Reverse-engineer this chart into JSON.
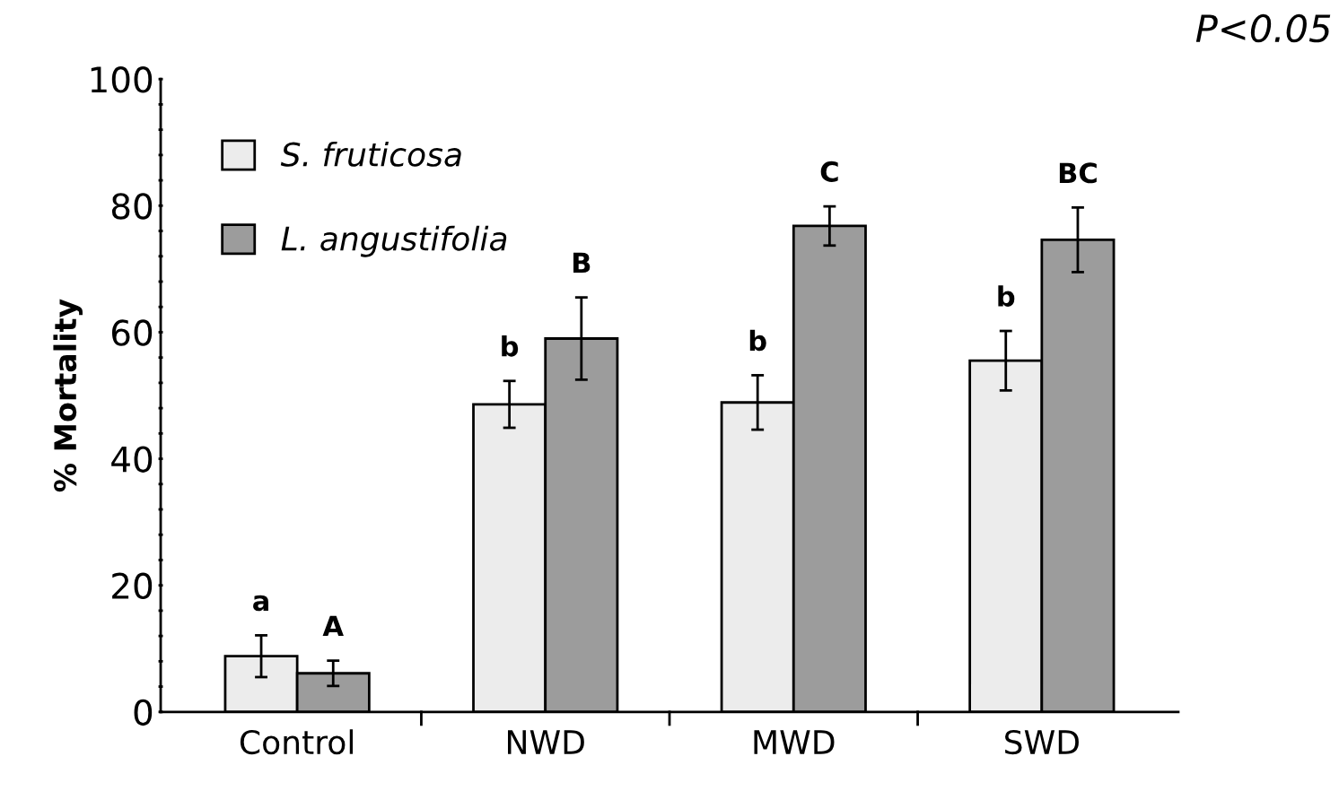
{
  "chart_data": {
    "type": "bar",
    "ylabel": "% Mortality",
    "categories": [
      "Control",
      "NWD",
      "MWD",
      "SWD"
    ],
    "series": [
      {
        "name": "S. fruticosa",
        "color": "#ececec",
        "values": [
          8.8,
          48.6,
          48.9,
          55.5
        ],
        "errors": [
          3.3,
          3.7,
          4.3,
          4.7
        ]
      },
      {
        "name": "L. angustifolia",
        "color": "#9c9c9c",
        "values": [
          6.1,
          59.0,
          76.8,
          74.6
        ],
        "errors": [
          2.0,
          6.5,
          3.1,
          5.1
        ]
      }
    ],
    "ylim": [
      0,
      100
    ],
    "yticks": [
      0,
      {
        "value": 4,
        "label": null
      },
      {
        "value": 8,
        "label": null
      },
      {
        "value": 12,
        "label": null
      },
      {
        "value": 16,
        "label": null
      },
      20,
      {
        "value": 24,
        "label": null
      },
      {
        "value": 28,
        "label": null
      },
      {
        "value": 32,
        "label": null
      },
      {
        "value": 36,
        "label": null
      },
      40,
      {
        "value": 44,
        "label": null
      },
      {
        "value": 48,
        "label": null
      },
      {
        "value": 52,
        "label": null
      },
      {
        "value": 56,
        "label": null
      },
      60,
      {
        "value": 64,
        "label": null
      },
      {
        "value": 68,
        "label": null
      },
      {
        "value": 72,
        "label": null
      },
      {
        "value": 76,
        "label": null
      },
      80,
      {
        "value": 84,
        "label": null
      },
      {
        "value": 88,
        "label": null
      },
      {
        "value": 92,
        "label": null
      },
      {
        "value": 96,
        "label": null
      },
      100
    ],
    "legend": "top left",
    "grid": false,
    "annotations": [
      "a",
      "A",
      "b",
      "B",
      "b",
      "C",
      "b",
      "BC",
      "P<0.05"
    ]
  }
}
